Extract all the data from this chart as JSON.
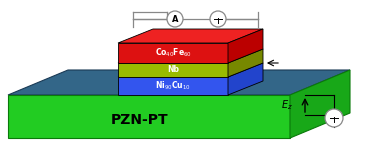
{
  "bg_color": "#ffffff",
  "sub_front_color": "#22cc22",
  "sub_right_color": "#18a818",
  "sub_top_color": "#336688",
  "layer_blue_front": "#3355ee",
  "layer_blue_top": "#4466ff",
  "layer_blue_right": "#2244cc",
  "layer_green_front": "#99bb00",
  "layer_green_top": "#bbdd00",
  "layer_green_right": "#778800",
  "layer_red_front": "#dd1111",
  "layer_red_top": "#ee2222",
  "layer_red_right": "#bb0000",
  "wire_color": "#888888",
  "arrow_color": "#111111",
  "pzn_pt_label": "PZN-PT",
  "layer_names": [
    "Ni$_{90}$Cu$_{10}$",
    "Nb",
    "Co$_{40}$Fe$_{60}$"
  ]
}
